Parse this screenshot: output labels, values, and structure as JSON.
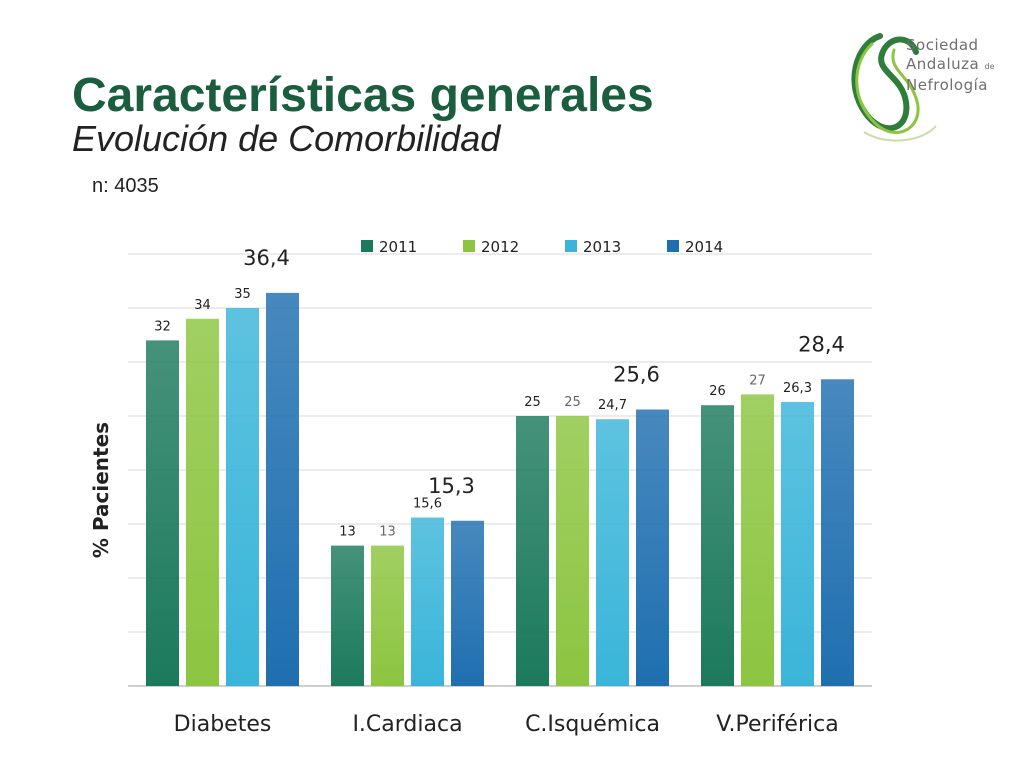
{
  "slide": {
    "title": "Características generales",
    "subtitle": "Evolución de Comorbilidad",
    "sample_size": "n: 4035"
  },
  "logo": {
    "line1": "Sociedad",
    "line2": "Andaluza",
    "line2_suffix": "de",
    "line3": "Nefrología",
    "colors": [
      "#2e7d3a",
      "#8cc63f"
    ]
  },
  "chart_data": {
    "type": "bar",
    "ylabel": "% Pacientes",
    "ylim": [
      0,
      40
    ],
    "grid": true,
    "legend": "top",
    "categories": [
      "Diabetes",
      "I.Cardiaca",
      "C.Isquémica",
      "V.Periférica"
    ],
    "series": [
      {
        "name": "2011",
        "color": "#1c7a5c",
        "values": [
          32,
          13,
          25,
          26
        ],
        "labels": [
          "32",
          "13",
          "25",
          "26"
        ]
      },
      {
        "name": "2012",
        "color": "#8cc540",
        "values": [
          34,
          13,
          25,
          27
        ],
        "labels": [
          "34",
          "13",
          "25",
          "27"
        ]
      },
      {
        "name": "2013",
        "color": "#3ab5d9",
        "values": [
          35,
          15.6,
          24.7,
          26.3
        ],
        "labels": [
          "35",
          "15,6",
          "24,7",
          "26,3"
        ]
      },
      {
        "name": "2014",
        "color": "#1f6fb0",
        "values": [
          36.4,
          15.3,
          25.6,
          28.4
        ],
        "labels": [
          "36,4",
          "15,3",
          "25,6",
          "28,4"
        ]
      }
    ]
  }
}
